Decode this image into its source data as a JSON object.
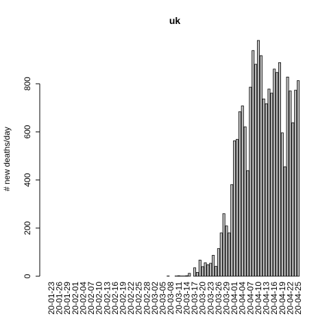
{
  "chart_data": {
    "type": "bar",
    "title": "uk",
    "ylabel": "# new deaths/day",
    "categories": [
      "20-01-23",
      null,
      null,
      "20-01-26",
      null,
      null,
      "20-01-29",
      null,
      null,
      "20-02-01",
      null,
      null,
      "20-02-04",
      null,
      null,
      "20-02-07",
      null,
      null,
      "20-02-10",
      null,
      null,
      "20-02-13",
      null,
      null,
      "20-02-16",
      null,
      null,
      "20-02-19",
      null,
      null,
      "20-02-22",
      null,
      null,
      "20-02-25",
      null,
      null,
      "20-02-28",
      null,
      null,
      "20-03-02",
      null,
      null,
      "20-03-05",
      null,
      null,
      "20-03-08",
      null,
      null,
      "20-03-11",
      null,
      null,
      "20-03-14",
      null,
      null,
      "20-03-17",
      null,
      null,
      "20-03-20",
      null,
      null,
      "20-03-23",
      null,
      null,
      "20-03-26",
      null,
      null,
      "20-03-29",
      null,
      null,
      "20-04-01",
      null,
      null,
      "20-04-04",
      null,
      null,
      "20-04-07",
      null,
      null,
      "20-04-10",
      null,
      null,
      "20-04-13",
      null,
      null,
      "20-04-16",
      null,
      null,
      "20-04-19",
      null,
      null,
      "20-04-22",
      null,
      null,
      "20-04-25"
    ],
    "values": [
      0,
      0,
      0,
      0,
      0,
      0,
      0,
      0,
      0,
      0,
      0,
      0,
      0,
      0,
      0,
      0,
      0,
      0,
      0,
      0,
      0,
      0,
      0,
      0,
      0,
      0,
      0,
      0,
      0,
      0,
      0,
      0,
      0,
      0,
      0,
      0,
      0,
      0,
      0,
      0,
      0,
      0,
      0,
      0,
      1,
      0,
      0,
      1,
      2,
      1,
      1,
      2,
      12,
      0,
      35,
      16,
      67,
      40,
      56,
      48,
      54,
      87,
      41,
      115,
      180,
      260,
      209,
      180,
      381,
      563,
      569,
      684,
      708,
      621,
      439,
      786,
      938,
      881,
      980,
      917,
      737,
      717,
      778,
      761,
      861,
      847,
      888,
      596,
      455,
      828,
      770,
      638,
      773,
      813
    ],
    "color": "#bebebe",
    "ylim": [
      0,
      1000
    ],
    "yticks": [
      0,
      200,
      400,
      600,
      800
    ]
  }
}
